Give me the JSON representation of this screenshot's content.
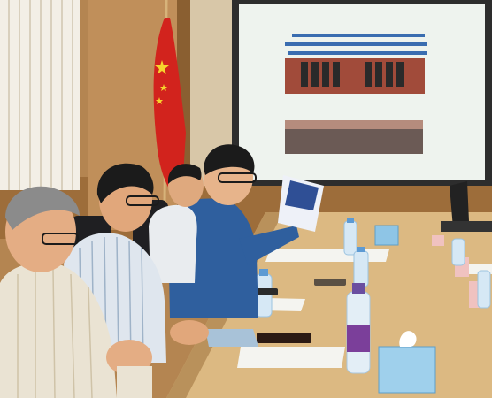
{
  "scene": {
    "description_free": true,
    "colors": {
      "wall": "#b48551",
      "wall_dark": "#8a5f31",
      "table": "#dcb982",
      "table_edge": "#b9915b",
      "screen": "#eef3ee",
      "flag": "#d2231d",
      "curtain": "#f3efe6",
      "blue_shirt": "#2f5f9e",
      "white_shirt": "#e9ecef"
    },
    "projector_screen": {
      "title_lines": [
        "",
        ""
      ],
      "banner_text_visible": false
    },
    "table_items": [
      {
        "name": "water-bottle",
        "count": 6
      },
      {
        "name": "tissue-box",
        "count": 2
      },
      {
        "name": "name-card",
        "count": 3
      },
      {
        "name": "paper-sheet",
        "count": 4
      },
      {
        "name": "phone",
        "count": 2
      }
    ],
    "people": [
      {
        "name": "person-front-left"
      },
      {
        "name": "person-striped-shirt"
      },
      {
        "name": "person-glasses-back"
      },
      {
        "name": "person-blue-shirt-speaker"
      }
    ]
  }
}
